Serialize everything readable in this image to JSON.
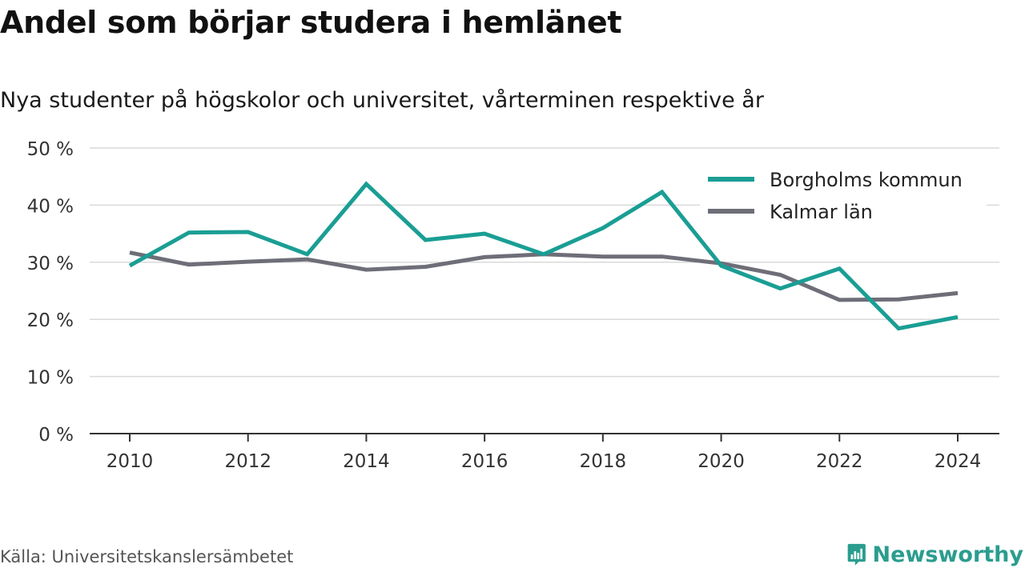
{
  "title": "Andel som börjar studera i hemlänet",
  "subtitle": "Nya studenter på högskolor och universitet, vårterminen respektive år",
  "source": "Källa: Universitetskanslersämbetet",
  "brand": {
    "name": "Newsworthy",
    "icon": "newsworthy-logo-icon",
    "color": "#2a9d8f"
  },
  "chart_data": {
    "type": "line",
    "x": [
      2010,
      2011,
      2012,
      2013,
      2014,
      2015,
      2016,
      2017,
      2018,
      2019,
      2020,
      2021,
      2022,
      2023,
      2024
    ],
    "series": [
      {
        "name": "Borgholms kommun",
        "color": "#1a9e94",
        "values": [
          29.4,
          35.2,
          35.3,
          31.4,
          43.7,
          33.9,
          35.0,
          31.4,
          36.0,
          42.3,
          29.4,
          25.4,
          28.9,
          18.4,
          20.4
        ]
      },
      {
        "name": "Kalmar län",
        "color": "#6e6e78",
        "values": [
          31.7,
          29.6,
          30.1,
          30.5,
          28.7,
          29.2,
          30.9,
          31.4,
          31.0,
          31.0,
          29.8,
          27.8,
          23.4,
          23.5,
          24.6
        ]
      }
    ],
    "xticks": [
      "2010",
      "2012",
      "2014",
      "2016",
      "2018",
      "2020",
      "2022",
      "2024"
    ],
    "yticks": [
      "0 %",
      "10 %",
      "20 %",
      "30 %",
      "40 %",
      "50 %"
    ],
    "ylim": [
      0,
      50
    ],
    "grid": true,
    "legend": "top-right"
  }
}
